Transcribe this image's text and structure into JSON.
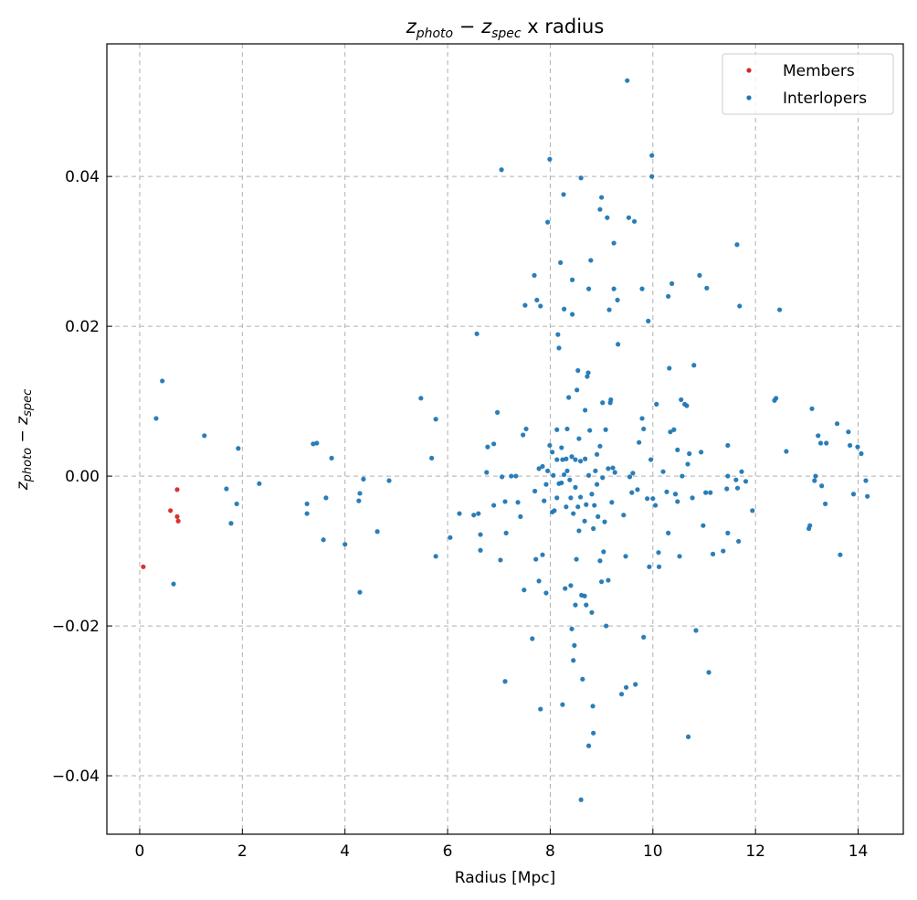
{
  "chart_data": {
    "type": "scatter",
    "title": {
      "var1": "z",
      "sub1": "photo",
      "op": " − ",
      "var2": "z",
      "sub2": "spec",
      "rest": " x radius"
    },
    "xlabel": "Radius [Mpc]",
    "ylabel": {
      "var1": "z",
      "sub1": "photo",
      "op": " − ",
      "var2": "z",
      "sub2": "spec"
    },
    "xlim": [
      -0.64,
      14.88
    ],
    "ylim": [
      -0.0478,
      0.0577
    ],
    "xticks": [
      0,
      2,
      4,
      6,
      8,
      10,
      12,
      14
    ],
    "xtick_labels": [
      "0",
      "2",
      "4",
      "6",
      "8",
      "10",
      "12",
      "14"
    ],
    "yticks": [
      -0.04,
      -0.02,
      0.0,
      0.02,
      0.04
    ],
    "ytick_labels": [
      "−0.04",
      "−0.02",
      "0.00",
      "0.02",
      "0.04"
    ],
    "grid": true,
    "legend_position": "top-right",
    "series": [
      {
        "name": "Members",
        "color": "#d62728",
        "points": [
          [
            0.07,
            -0.0121
          ],
          [
            0.6,
            -0.0046
          ],
          [
            0.73,
            -0.0018
          ],
          [
            0.73,
            -0.0054
          ],
          [
            0.75,
            -0.006
          ]
        ]
      },
      {
        "name": "Interlopers",
        "color": "#1f77b4",
        "points": [
          [
            0.44,
            0.0127
          ],
          [
            0.32,
            0.0077
          ],
          [
            0.66,
            -0.0144
          ],
          [
            1.26,
            0.0054
          ],
          [
            1.92,
            0.0037
          ],
          [
            1.69,
            -0.0017
          ],
          [
            1.89,
            -0.0037
          ],
          [
            1.78,
            -0.0063
          ],
          [
            2.33,
            -0.001
          ],
          [
            3.26,
            -0.0037
          ],
          [
            3.26,
            -0.005
          ],
          [
            3.38,
            0.0043
          ],
          [
            3.45,
            0.0044
          ],
          [
            3.63,
            -0.0029
          ],
          [
            3.58,
            -0.0085
          ],
          [
            3.74,
            0.0024
          ],
          [
            4.0,
            -0.0091
          ],
          [
            4.29,
            -0.0023
          ],
          [
            4.27,
            -0.0033
          ],
          [
            4.36,
            -0.0004
          ],
          [
            4.29,
            -0.0155
          ],
          [
            4.63,
            -0.0074
          ],
          [
            4.86,
            -0.0006
          ],
          [
            5.48,
            0.0104
          ],
          [
            5.69,
            0.0024
          ],
          [
            5.77,
            0.0076
          ],
          [
            5.77,
            -0.0107
          ],
          [
            6.05,
            -0.0082
          ],
          [
            6.23,
            -0.005
          ],
          [
            6.57,
            0.019
          ],
          [
            6.51,
            -0.0052
          ],
          [
            6.6,
            -0.005
          ],
          [
            6.64,
            -0.0078
          ],
          [
            6.64,
            -0.0099
          ],
          [
            6.76,
            0.0005
          ],
          [
            6.78,
            0.0039
          ],
          [
            6.9,
            0.0043
          ],
          [
            6.9,
            -0.0039
          ],
          [
            6.97,
            0.0085
          ],
          [
            7.05,
            0.0409
          ],
          [
            7.03,
            -0.0112
          ],
          [
            7.12,
            -0.0274
          ],
          [
            7.06,
            -0.0001
          ],
          [
            7.12,
            -0.0034
          ],
          [
            7.14,
            -0.0076
          ],
          [
            7.24,
            0.0
          ],
          [
            7.33,
            0.0
          ],
          [
            7.37,
            -0.0035
          ],
          [
            7.42,
            -0.0054
          ],
          [
            7.47,
            0.0055
          ],
          [
            7.53,
            0.0063
          ],
          [
            7.49,
            -0.0152
          ],
          [
            7.51,
            0.0228
          ],
          [
            7.65,
            -0.0217
          ],
          [
            7.69,
            0.0268
          ],
          [
            7.7,
            -0.002
          ],
          [
            7.74,
            0.0235
          ],
          [
            7.78,
            0.001
          ],
          [
            7.72,
            -0.0111
          ],
          [
            7.78,
            -0.014
          ],
          [
            7.81,
            0.0227
          ],
          [
            7.81,
            -0.0311
          ],
          [
            7.85,
            -0.0105
          ],
          [
            7.85,
            0.0013
          ],
          [
            7.88,
            -0.0033
          ],
          [
            7.92,
            -0.0156
          ],
          [
            7.95,
            0.0339
          ],
          [
            7.99,
            0.0423
          ],
          [
            8.04,
            0.0032
          ],
          [
            8.08,
            -0.0046
          ],
          [
            8.15,
            0.0189
          ],
          [
            8.17,
            0.0171
          ],
          [
            8.2,
            0.0285
          ],
          [
            8.22,
            -0.0009
          ],
          [
            8.24,
            -0.0305
          ],
          [
            8.26,
            0.0376
          ],
          [
            8.27,
            0.0223
          ],
          [
            8.29,
            -0.015
          ],
          [
            8.33,
            0.0063
          ],
          [
            8.36,
            0.0105
          ],
          [
            8.4,
            -0.0146
          ],
          [
            8.42,
            -0.0204
          ],
          [
            8.43,
            0.0262
          ],
          [
            8.43,
            0.0216
          ],
          [
            8.45,
            -0.0246
          ],
          [
            8.47,
            -0.0226
          ],
          [
            8.49,
            -0.0172
          ],
          [
            8.51,
            -0.0111
          ],
          [
            8.52,
            0.0115
          ],
          [
            8.54,
            0.0141
          ],
          [
            8.56,
            -0.0073
          ],
          [
            8.6,
            0.0398
          ],
          [
            8.6,
            -0.0432
          ],
          [
            8.61,
            -0.0159
          ],
          [
            8.63,
            -0.0271
          ],
          [
            8.67,
            -0.016
          ],
          [
            8.68,
            0.0088
          ],
          [
            8.7,
            -0.0172
          ],
          [
            8.72,
            0.0133
          ],
          [
            8.74,
            0.0138
          ],
          [
            8.75,
            0.025
          ],
          [
            8.75,
            -0.036
          ],
          [
            8.79,
            0.0288
          ],
          [
            8.81,
            -0.0182
          ],
          [
            8.83,
            -0.0307
          ],
          [
            8.84,
            -0.0343
          ],
          [
            8.86,
            -0.0039
          ],
          [
            8.91,
            0.0029
          ],
          [
            8.93,
            -0.0054
          ],
          [
            8.97,
            -0.0113
          ],
          [
            8.97,
            0.0356
          ],
          [
            9.0,
            0.0372
          ],
          [
            9.0,
            -0.0141
          ],
          [
            9.02,
            0.0098
          ],
          [
            9.04,
            -0.0101
          ],
          [
            9.06,
            -0.0061
          ],
          [
            9.08,
            0.0062
          ],
          [
            9.09,
            -0.02
          ],
          [
            9.11,
            0.0345
          ],
          [
            9.13,
            -0.0139
          ],
          [
            9.15,
            0.0222
          ],
          [
            9.17,
            0.0098
          ],
          [
            9.18,
            0.0102
          ],
          [
            9.2,
            -0.0035
          ],
          [
            9.22,
            0.0011
          ],
          [
            9.24,
            0.025
          ],
          [
            9.24,
            0.0311
          ],
          [
            9.26,
            0.0005
          ],
          [
            9.31,
            0.0235
          ],
          [
            9.32,
            0.0176
          ],
          [
            9.39,
            -0.0291
          ],
          [
            9.43,
            -0.0052
          ],
          [
            9.47,
            -0.0107
          ],
          [
            9.48,
            -0.0282
          ],
          [
            9.5,
            0.0528
          ],
          [
            9.53,
            0.0345
          ],
          [
            9.55,
            -0.0001
          ],
          [
            9.59,
            -0.0022
          ],
          [
            9.61,
            0.0004
          ],
          [
            9.64,
            0.034
          ],
          [
            9.66,
            -0.0278
          ],
          [
            9.7,
            -0.0018
          ],
          [
            9.73,
            0.0045
          ],
          [
            9.79,
            0.025
          ],
          [
            9.79,
            0.0077
          ],
          [
            9.82,
            0.0063
          ],
          [
            9.82,
            -0.0215
          ],
          [
            9.89,
            -0.003
          ],
          [
            9.91,
            0.0207
          ],
          [
            9.93,
            -0.0121
          ],
          [
            9.96,
            0.0022
          ],
          [
            9.98,
            0.0428
          ],
          [
            9.98,
            0.04
          ],
          [
            10.0,
            -0.003
          ],
          [
            10.05,
            -0.0039
          ],
          [
            10.07,
            0.0096
          ],
          [
            10.11,
            -0.0102
          ],
          [
            10.12,
            -0.0121
          ],
          [
            10.2,
            0.0006
          ],
          [
            10.27,
            -0.0021
          ],
          [
            10.3,
            -0.0076
          ],
          [
            10.3,
            0.024
          ],
          [
            10.32,
            0.0144
          ],
          [
            10.34,
            0.0059
          ],
          [
            10.37,
            0.0257
          ],
          [
            10.41,
            0.0062
          ],
          [
            10.44,
            -0.0024
          ],
          [
            10.48,
            0.0035
          ],
          [
            10.48,
            -0.0034
          ],
          [
            10.52,
            -0.0107
          ],
          [
            10.55,
            0.0102
          ],
          [
            10.57,
            0.0
          ],
          [
            10.62,
            0.0096
          ],
          [
            10.66,
            0.0094
          ],
          [
            10.68,
            0.0016
          ],
          [
            10.69,
            -0.0348
          ],
          [
            10.71,
            0.003
          ],
          [
            10.77,
            -0.0029
          ],
          [
            10.8,
            0.0148
          ],
          [
            10.84,
            -0.0206
          ],
          [
            10.91,
            0.0268
          ],
          [
            10.94,
            0.0032
          ],
          [
            10.98,
            -0.0066
          ],
          [
            11.03,
            -0.0022
          ],
          [
            11.05,
            0.0251
          ],
          [
            11.09,
            -0.0262
          ],
          [
            11.12,
            -0.0022
          ],
          [
            11.17,
            -0.0104
          ],
          [
            11.37,
            -0.01
          ],
          [
            11.44,
            -0.0017
          ],
          [
            11.46,
            -0.0076
          ],
          [
            11.46,
            0.0041
          ],
          [
            11.46,
            0.0
          ],
          [
            11.62,
            -0.0005
          ],
          [
            11.64,
            0.0309
          ],
          [
            11.65,
            -0.0016
          ],
          [
            11.67,
            -0.0087
          ],
          [
            11.69,
            0.0227
          ],
          [
            11.73,
            0.0006
          ],
          [
            11.81,
            -0.0007
          ],
          [
            11.94,
            -0.0046
          ],
          [
            12.37,
            0.0101
          ],
          [
            12.4,
            0.0104
          ],
          [
            12.47,
            0.0222
          ],
          [
            12.6,
            0.0033
          ],
          [
            13.1,
            0.009
          ],
          [
            13.04,
            -0.007
          ],
          [
            13.06,
            -0.0066
          ],
          [
            13.15,
            -0.0006
          ],
          [
            13.17,
            0.0
          ],
          [
            13.22,
            0.0054
          ],
          [
            13.27,
            0.0044
          ],
          [
            13.29,
            -0.0013
          ],
          [
            13.38,
            0.0044
          ],
          [
            13.36,
            -0.0037
          ],
          [
            13.59,
            0.007
          ],
          [
            13.65,
            -0.0105
          ],
          [
            13.81,
            0.0059
          ],
          [
            13.84,
            0.0041
          ],
          [
            13.91,
            -0.0024
          ],
          [
            13.99,
            0.0039
          ],
          [
            14.06,
            0.003
          ],
          [
            14.15,
            -0.0006
          ],
          [
            14.18,
            -0.0027
          ],
          [
            7.99,
            0.0041
          ],
          [
            8.13,
            0.0022
          ],
          [
            8.24,
            0.0022
          ],
          [
            8.31,
            0.0023
          ],
          [
            8.42,
            0.0026
          ],
          [
            8.49,
            0.0022
          ],
          [
            8.59,
            0.002
          ],
          [
            8.68,
            0.0023
          ],
          [
            8.06,
            0.0001
          ],
          [
            8.17,
            -0.001
          ],
          [
            8.27,
            0.0002
          ],
          [
            8.38,
            -0.0005
          ],
          [
            8.49,
            -0.0015
          ],
          [
            8.59,
            -0.0028
          ],
          [
            8.7,
            -0.0038
          ],
          [
            8.81,
            -0.0024
          ],
          [
            8.91,
            -0.0011
          ],
          [
            9.02,
            -0.0002
          ],
          [
            9.13,
            0.001
          ],
          [
            8.13,
            -0.0029
          ],
          [
            8.31,
            -0.0041
          ],
          [
            8.45,
            -0.005
          ],
          [
            8.67,
            -0.006
          ],
          [
            8.84,
            -0.007
          ],
          [
            8.22,
            0.0038
          ],
          [
            8.56,
            0.005
          ],
          [
            8.77,
            0.0061
          ],
          [
            8.97,
            0.004
          ],
          [
            8.04,
            -0.0048
          ],
          [
            7.92,
            -0.0011
          ],
          [
            8.4,
            -0.0029
          ],
          [
            8.54,
            -0.0041
          ],
          [
            8.75,
            0.0001
          ],
          [
            8.88,
            0.0007
          ],
          [
            8.33,
            0.0007
          ],
          [
            8.13,
            0.0062
          ],
          [
            7.95,
            0.0007
          ]
        ]
      }
    ]
  }
}
